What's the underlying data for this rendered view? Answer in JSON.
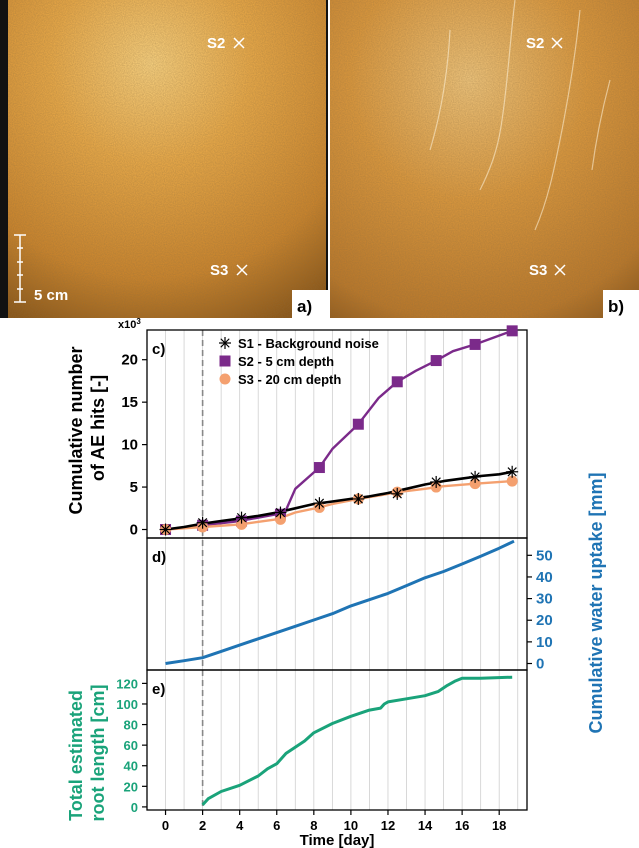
{
  "photos": [
    {
      "panel_label": "a)",
      "markers": [
        {
          "label": "S2"
        },
        {
          "label": "S3"
        }
      ],
      "scale_bar": "5 cm"
    },
    {
      "panel_label": "b)",
      "markers": [
        {
          "label": "S2"
        },
        {
          "label": "S3"
        }
      ]
    }
  ],
  "colors": {
    "s1": "#000000",
    "s2": "#7b2a8a",
    "s3": "#f4a06f",
    "water": "#1f74b4",
    "root": "#1aa37a",
    "dashed": "#888888",
    "grid": "#cfcfcf"
  },
  "chart_data": [
    {
      "type": "line",
      "panel_label": "c)",
      "ylabel": "Cumulative number of AE hits [-]",
      "ylabel_lines": [
        "Cumulative number",
        "of AE hits [-]"
      ],
      "multiplier": "x10",
      "multiplier_exp": "3",
      "xlim": [
        -1,
        19.5
      ],
      "ylim": [
        -1,
        23.5
      ],
      "yticks": [
        0,
        5,
        10,
        15,
        20
      ],
      "legend_position": "top-left",
      "series": [
        {
          "name": "S1 - Background noise",
          "marker": "star",
          "color": "#000000",
          "x": [
            0,
            1,
            2,
            3,
            4,
            5,
            6,
            7,
            8,
            9,
            10,
            11,
            12,
            13,
            14,
            15,
            16,
            17,
            18,
            18.7
          ],
          "y": [
            0,
            0.3,
            0.7,
            1.0,
            1.3,
            1.6,
            2.0,
            2.5,
            3.0,
            3.3,
            3.6,
            3.9,
            4.3,
            4.8,
            5.3,
            5.7,
            6.0,
            6.3,
            6.5,
            6.8
          ],
          "mx": [
            0,
            2,
            4.1,
            6.2,
            8.3,
            10.4,
            12.5,
            14.6,
            16.7,
            18.7
          ],
          "my": [
            0,
            0.8,
            1.4,
            2.0,
            3.1,
            3.6,
            4.2,
            5.6,
            6.2,
            6.8
          ]
        },
        {
          "name": "S2 - 5 cm depth",
          "marker": "square",
          "color": "#7b2a8a",
          "x": [
            0,
            2,
            4,
            6,
            6.5,
            7,
            8.3,
            9,
            10.4,
            11.5,
            12.5,
            13.5,
            14.6,
            15.5,
            16.7,
            17.7,
            18.7
          ],
          "y": [
            0,
            0.5,
            1.0,
            1.8,
            2.3,
            4.8,
            7.3,
            9.5,
            12.4,
            15.5,
            17.4,
            18.7,
            19.9,
            21.0,
            21.8,
            22.6,
            23.4
          ],
          "mx": [
            0,
            2,
            4.1,
            6.2,
            8.3,
            10.4,
            12.5,
            14.6,
            16.7,
            18.7
          ],
          "my": [
            0,
            0.5,
            1.0,
            1.8,
            7.3,
            12.4,
            17.4,
            19.9,
            21.8,
            23.4
          ]
        },
        {
          "name": "S3 - 20 cm depth",
          "marker": "circle",
          "color": "#f4a06f",
          "x": [
            0,
            2,
            4,
            6,
            7,
            8.3,
            9,
            10.4,
            11.5,
            12.5,
            14,
            15,
            16.7,
            18.7
          ],
          "y": [
            0,
            0.3,
            0.6,
            1.2,
            2.0,
            2.6,
            3.0,
            3.6,
            4.0,
            4.4,
            4.8,
            5.1,
            5.4,
            5.7
          ],
          "mx": [
            0,
            2,
            4.1,
            6.2,
            8.3,
            10.4,
            12.5,
            14.6,
            16.7,
            18.7
          ],
          "my": [
            0,
            0.3,
            0.6,
            1.2,
            2.6,
            3.6,
            4.4,
            5.0,
            5.4,
            5.7
          ]
        }
      ]
    },
    {
      "type": "line",
      "panel_label": "d)",
      "ylabel": "Cumulative water uptake [mm]",
      "ylabel_position": "right",
      "xlim": [
        -1,
        19.5
      ],
      "ylim": [
        -3,
        58
      ],
      "yticks": [
        0,
        10,
        20,
        30,
        40,
        50
      ],
      "series": [
        {
          "color": "#1f74b4",
          "x": [
            0,
            1,
            2,
            3,
            4,
            5,
            6,
            7,
            8,
            9,
            10,
            11,
            12,
            13,
            14,
            15,
            16,
            17,
            18,
            18.8
          ],
          "y": [
            0,
            1.3,
            2.7,
            5.6,
            8.5,
            11.4,
            14.3,
            17.2,
            20.1,
            23.0,
            26.6,
            29.5,
            32.4,
            36.0,
            39.6,
            42.5,
            46.0,
            49.6,
            53.3,
            56.5
          ]
        }
      ]
    },
    {
      "type": "line",
      "panel_label": "e)",
      "ylabel": "Total estimated root length [cm]",
      "ylabel_lines": [
        "Total estimated",
        "root length [cm]"
      ],
      "xlabel": "Time [day]",
      "xlim": [
        -1,
        19.5
      ],
      "ylim": [
        -3,
        133
      ],
      "xticks": [
        0,
        2,
        4,
        6,
        8,
        10,
        12,
        14,
        16,
        18
      ],
      "yticks": [
        0,
        20,
        40,
        60,
        80,
        100,
        120
      ],
      "series": [
        {
          "color": "#1aa37a",
          "x": [
            2,
            2.3,
            3,
            4,
            5,
            5.5,
            6,
            6.5,
            7.5,
            8,
            9,
            10,
            11,
            11.6,
            11.8,
            12,
            13,
            14,
            14.7,
            15.2,
            15.6,
            16,
            17,
            18.7
          ],
          "y": [
            2,
            8,
            15,
            21,
            30,
            37,
            42,
            52,
            64,
            72,
            81,
            88,
            94,
            96,
            100,
            102,
            105,
            108,
            112,
            118,
            122,
            125,
            125,
            126
          ]
        }
      ]
    }
  ],
  "annotation": {
    "dashed_line_x": 2
  }
}
